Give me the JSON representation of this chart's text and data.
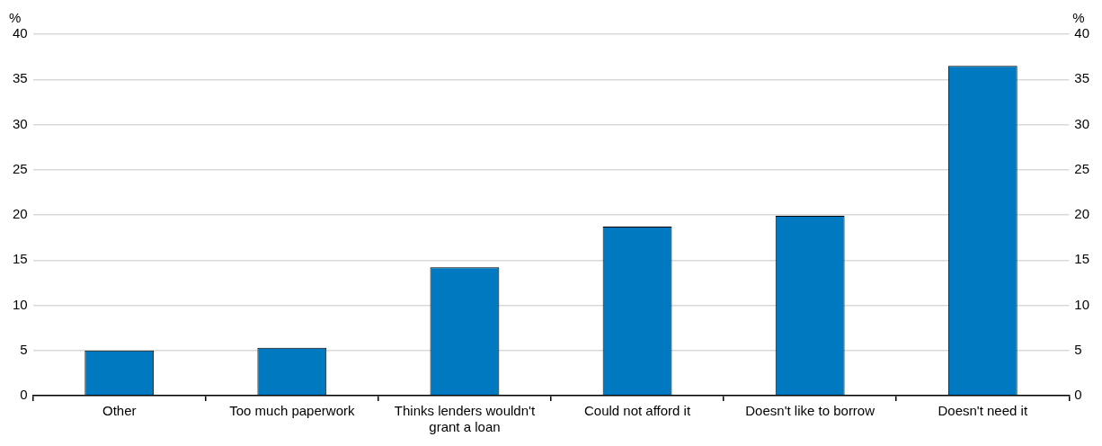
{
  "chart_data": {
    "type": "bar",
    "categories": [
      "Other",
      "Too much paperwork",
      "Thinks lenders wouldn't grant a loan",
      "Could not afford it",
      "Doesn't like to borrow",
      "Doesn't need it"
    ],
    "values": [
      5.0,
      5.3,
      14.2,
      18.7,
      19.9,
      36.5
    ],
    "color": "#0179c0",
    "ylabel": "%",
    "y2label": "%",
    "ylim": [
      0,
      40
    ],
    "yticks": [
      0,
      5,
      10,
      15,
      20,
      25,
      30,
      35,
      40
    ],
    "y2lim": [
      0,
      40
    ],
    "y2ticks": [
      0,
      5,
      10,
      15,
      20,
      25,
      30,
      35,
      40
    ],
    "grid": "y",
    "legend": false
  }
}
